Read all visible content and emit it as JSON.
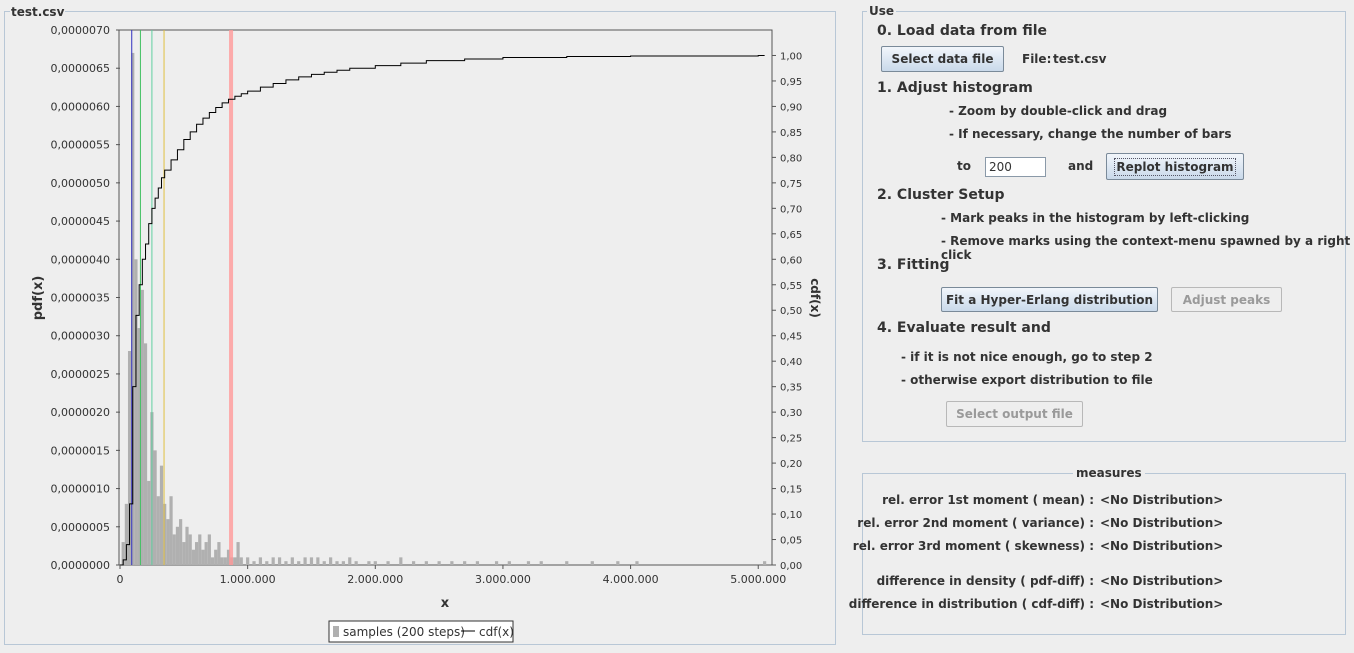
{
  "chart_panel": {
    "title": "test.csv"
  },
  "chart_data": {
    "type": "bar",
    "ylabel": "pdf(x)",
    "y2label": "cdf(x)",
    "xlabel": "x",
    "xlim": [
      0,
      5100000
    ],
    "ylim": [
      0,
      7e-06
    ],
    "y2lim": [
      0,
      1.05
    ],
    "grid": false,
    "legend_placement": "bottom-center",
    "x_ticks": [
      0,
      1000000,
      2000000,
      3000000,
      4000000,
      5000000
    ],
    "x_tick_labels": [
      "0",
      "1.000.000",
      "2.000.000",
      "3.000.000",
      "4.000.000",
      "5.000.000"
    ],
    "y_ticks": [
      0,
      5e-07,
      1e-06,
      1.5e-06,
      2e-06,
      2.5e-06,
      3e-06,
      3.5e-06,
      4e-06,
      4.5e-06,
      5e-06,
      5.5e-06,
      6e-06,
      6.5e-06,
      7e-06
    ],
    "y_tick_labels": [
      "0,0000000",
      "0,0000005",
      "0,0000010",
      "0,0000015",
      "0,0000020",
      "0,0000025",
      "0,0000030",
      "0,0000035",
      "0,0000040",
      "0,0000045",
      "0,0000050",
      "0,0000055",
      "0,0000060",
      "0,0000065",
      "0,0000070"
    ],
    "y2_ticks": [
      0,
      0.05,
      0.1,
      0.15,
      0.2,
      0.25,
      0.3,
      0.35,
      0.4,
      0.45,
      0.5,
      0.55,
      0.6,
      0.65,
      0.7,
      0.75,
      0.8,
      0.85,
      0.9,
      0.95,
      1.0
    ],
    "y2_tick_labels": [
      "0,00",
      "0,05",
      "0,10",
      "0,15",
      "0,20",
      "0,25",
      "0,30",
      "0,35",
      "0,40",
      "0,45",
      "0,50",
      "0,55",
      "0,60",
      "0,65",
      "0,70",
      "0,75",
      "0,80",
      "0,85",
      "0,90",
      "0,95",
      "1,00"
    ],
    "series": [
      {
        "name": "samples (200 steps)",
        "kind": "histogram",
        "color": "#b0b0b0",
        "points": [
          [
            25000,
            3e-07
          ],
          [
            50000,
            8e-07
          ],
          [
            75000,
            2.8e-06
          ],
          [
            100000,
            6.7e-06
          ],
          [
            125000,
            4e-06
          ],
          [
            150000,
            3.1e-06
          ],
          [
            175000,
            3.6e-06
          ],
          [
            200000,
            2.9e-06
          ],
          [
            225000,
            1.1e-06
          ],
          [
            250000,
            2e-06
          ],
          [
            275000,
            1.5e-06
          ],
          [
            300000,
            9e-07
          ],
          [
            325000,
            1.3e-06
          ],
          [
            350000,
            8e-07
          ],
          [
            375000,
            6e-07
          ],
          [
            400000,
            9e-07
          ],
          [
            425000,
            4e-07
          ],
          [
            450000,
            5e-07
          ],
          [
            475000,
            6e-07
          ],
          [
            500000,
            3e-07
          ],
          [
            525000,
            5e-07
          ],
          [
            550000,
            4e-07
          ],
          [
            575000,
            2e-07
          ],
          [
            600000,
            3e-07
          ],
          [
            625000,
            4e-07
          ],
          [
            650000,
            2e-07
          ],
          [
            675000,
            3e-07
          ],
          [
            700000,
            4e-07
          ],
          [
            725000,
            1e-07
          ],
          [
            750000,
            2e-07
          ],
          [
            775000,
            3e-07
          ],
          [
            800000,
            1e-07
          ],
          [
            825000,
            1e-07
          ],
          [
            850000,
            2e-07
          ],
          [
            875000,
            1e-07
          ],
          [
            900000,
            1e-07
          ],
          [
            925000,
            3e-07
          ],
          [
            950000,
            1e-07
          ],
          [
            1000000,
            1e-07
          ],
          [
            1050000,
            5e-08
          ],
          [
            1100000,
            1e-07
          ],
          [
            1150000,
            5e-08
          ],
          [
            1200000,
            1e-07
          ],
          [
            1250000,
            1e-07
          ],
          [
            1300000,
            5e-08
          ],
          [
            1350000,
            1e-07
          ],
          [
            1400000,
            5e-08
          ],
          [
            1450000,
            1e-07
          ],
          [
            1500000,
            1e-07
          ],
          [
            1550000,
            1e-07
          ],
          [
            1600000,
            5e-08
          ],
          [
            1650000,
            1e-07
          ],
          [
            1700000,
            5e-08
          ],
          [
            1750000,
            5e-08
          ],
          [
            1800000,
            1e-07
          ],
          [
            1850000,
            5e-08
          ],
          [
            1950000,
            5e-08
          ],
          [
            2000000,
            5e-08
          ],
          [
            2100000,
            5e-08
          ],
          [
            2200000,
            1e-07
          ],
          [
            2300000,
            5e-08
          ],
          [
            2400000,
            5e-08
          ],
          [
            2500000,
            5e-08
          ],
          [
            2600000,
            5e-08
          ],
          [
            2700000,
            5e-08
          ],
          [
            2800000,
            5e-08
          ],
          [
            2950000,
            5e-08
          ],
          [
            3050000,
            5e-08
          ],
          [
            3200000,
            5e-08
          ],
          [
            3300000,
            5e-08
          ],
          [
            3500000,
            5e-08
          ],
          [
            3700000,
            5e-08
          ],
          [
            3900000,
            5e-08
          ],
          [
            4050000,
            5e-08
          ],
          [
            5050000,
            5e-08
          ]
        ]
      },
      {
        "name": "cdf(x)",
        "kind": "line",
        "axis": "right",
        "color": "#000000",
        "points": [
          [
            0,
            0
          ],
          [
            25000,
            0.01
          ],
          [
            50000,
            0.04
          ],
          [
            75000,
            0.12
          ],
          [
            100000,
            0.35
          ],
          [
            125000,
            0.49
          ],
          [
            150000,
            0.55
          ],
          [
            175000,
            0.6
          ],
          [
            200000,
            0.63
          ],
          [
            225000,
            0.67
          ],
          [
            250000,
            0.7
          ],
          [
            275000,
            0.72
          ],
          [
            300000,
            0.74
          ],
          [
            325000,
            0.76
          ],
          [
            350000,
            0.775
          ],
          [
            400000,
            0.795
          ],
          [
            450000,
            0.815
          ],
          [
            500000,
            0.835
          ],
          [
            550000,
            0.85
          ],
          [
            600000,
            0.865
          ],
          [
            650000,
            0.877
          ],
          [
            700000,
            0.888
          ],
          [
            750000,
            0.898
          ],
          [
            800000,
            0.907
          ],
          [
            850000,
            0.914
          ],
          [
            900000,
            0.92
          ],
          [
            950000,
            0.925
          ],
          [
            1000000,
            0.93
          ],
          [
            1100000,
            0.938
          ],
          [
            1200000,
            0.945
          ],
          [
            1300000,
            0.952
          ],
          [
            1400000,
            0.958
          ],
          [
            1500000,
            0.963
          ],
          [
            1600000,
            0.967
          ],
          [
            1700000,
            0.971
          ],
          [
            1800000,
            0.975
          ],
          [
            2000000,
            0.98
          ],
          [
            2200000,
            0.985
          ],
          [
            2400000,
            0.99
          ],
          [
            2700000,
            0.993
          ],
          [
            3000000,
            0.996
          ],
          [
            3500000,
            0.998
          ],
          [
            4000000,
            0.999
          ],
          [
            5000000,
            1.0
          ]
        ]
      }
    ],
    "marks": [
      {
        "x": 92000,
        "color": "#3030c0"
      },
      {
        "x": 160000,
        "color": "#40c060"
      },
      {
        "x": 250000,
        "color": "#60d0a0"
      },
      {
        "x": 345000,
        "color": "#e0c040"
      },
      {
        "x": 870000,
        "color": "#ff9999",
        "band": true
      }
    ]
  },
  "use_panel": {
    "title": "Use",
    "step0": "0. Load data from file",
    "select_data_button": "Select data file",
    "file_label": "File:",
    "file_name": "test.csv",
    "step1": "1. Adjust histogram",
    "step1_note1": "- Zoom by double-click and drag",
    "step1_note2": "- If necessary, change the number of bars",
    "to_label": "to",
    "bars_value": "200",
    "and_label": "and",
    "replot_button": "Replot histogram",
    "step2": "2. Cluster Setup",
    "step2_note1": "- Mark peaks in the histogram by left-clicking",
    "step2_note2": "- Remove marks using the context-menu spawned by a right click",
    "step3": "3. Fitting",
    "fit_button": "Fit a Hyper-Erlang distribution",
    "adjust_button": "Adjust peaks",
    "step4": "4. Evaluate result and",
    "step4_note1": "- if it is not nice enough, go to step 2",
    "step4_note2": "- otherwise export distribution to file",
    "output_button": "Select output file"
  },
  "measures_panel": {
    "title": "measures",
    "rows": [
      {
        "label": "rel. error 1st moment ( mean) :",
        "value": "<No Distribution>"
      },
      {
        "label": "rel. error 2nd moment ( variance) :",
        "value": "<No Distribution>"
      },
      {
        "label": "rel. error 3rd moment ( skewness) :",
        "value": "<No Distribution>"
      },
      {
        "label": "difference in density ( pdf-diff)     :",
        "value": "<No Distribution>"
      },
      {
        "label": "difference in distribution ( cdf-diff) :",
        "value": "<No Distribution>"
      }
    ]
  }
}
